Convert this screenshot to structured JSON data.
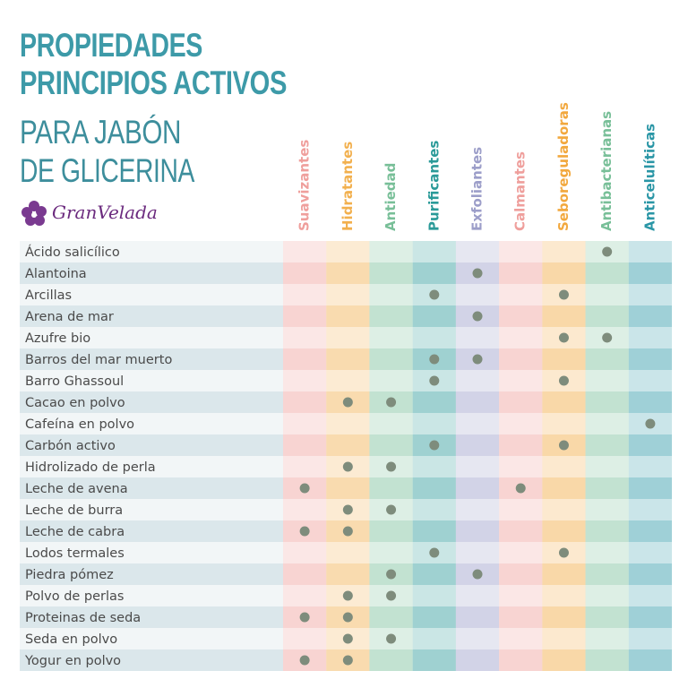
{
  "header": {
    "title": [
      "PROPIEDADES",
      "PRINCIPIOS ACTIVOS"
    ],
    "subtitle": [
      "PARA JABÓN",
      "DE GLICERINA"
    ],
    "brand": "GranVelada"
  },
  "table": {
    "columns": [
      {
        "name": "Suavizantes",
        "color": "#ef9f9c"
      },
      {
        "name": "Hidratantes",
        "color": "#f2b04e"
      },
      {
        "name": "Antiedad",
        "color": "#78bf98"
      },
      {
        "name": "Purificantes",
        "color": "#2a9a98"
      },
      {
        "name": "Exfoliantes",
        "color": "#9c9ec9"
      },
      {
        "name": "Calmantes",
        "color": "#ef9f9c"
      },
      {
        "name": "Seboreguladoras",
        "color": "#f2a83e"
      },
      {
        "name": "Antibacterianas",
        "color": "#78bf98"
      },
      {
        "name": "Anticelulíticas",
        "color": "#2a96a6"
      }
    ],
    "rows": [
      {
        "label": "Ácido salicílico",
        "marks": [
          false,
          false,
          false,
          false,
          false,
          false,
          false,
          true,
          false
        ]
      },
      {
        "label": "Alantoina",
        "marks": [
          false,
          false,
          false,
          false,
          true,
          false,
          false,
          false,
          false
        ]
      },
      {
        "label": "Arcillas",
        "marks": [
          false,
          false,
          false,
          true,
          false,
          false,
          true,
          false,
          false
        ]
      },
      {
        "label": "Arena de mar",
        "marks": [
          false,
          false,
          false,
          false,
          true,
          false,
          false,
          false,
          false
        ]
      },
      {
        "label": "Azufre bio",
        "marks": [
          false,
          false,
          false,
          false,
          false,
          false,
          true,
          true,
          false
        ]
      },
      {
        "label": "Barros del mar muerto",
        "marks": [
          false,
          false,
          false,
          true,
          true,
          false,
          false,
          false,
          false
        ]
      },
      {
        "label": "Barro Ghassoul",
        "marks": [
          false,
          false,
          false,
          true,
          false,
          false,
          true,
          false,
          false
        ]
      },
      {
        "label": "Cacao en polvo",
        "marks": [
          false,
          true,
          true,
          false,
          false,
          false,
          false,
          false,
          false
        ]
      },
      {
        "label": "Cafeína en polvo",
        "marks": [
          false,
          false,
          false,
          false,
          false,
          false,
          false,
          false,
          true
        ]
      },
      {
        "label": "Carbón activo",
        "marks": [
          false,
          false,
          false,
          true,
          false,
          false,
          true,
          false,
          false
        ]
      },
      {
        "label": "Hidrolizado de perla",
        "marks": [
          false,
          true,
          true,
          false,
          false,
          false,
          false,
          false,
          false
        ]
      },
      {
        "label": "Leche de avena",
        "marks": [
          true,
          false,
          false,
          false,
          false,
          true,
          false,
          false,
          false
        ]
      },
      {
        "label": "Leche de burra",
        "marks": [
          false,
          true,
          true,
          false,
          false,
          false,
          false,
          false,
          false
        ]
      },
      {
        "label": "Leche de cabra",
        "marks": [
          true,
          true,
          false,
          false,
          false,
          false,
          false,
          false,
          false
        ]
      },
      {
        "label": "Lodos termales",
        "marks": [
          false,
          false,
          false,
          true,
          false,
          false,
          true,
          false,
          false
        ]
      },
      {
        "label": "Piedra pómez",
        "marks": [
          false,
          false,
          true,
          false,
          true,
          false,
          false,
          false,
          false
        ]
      },
      {
        "label": "Polvo de perlas",
        "marks": [
          false,
          true,
          true,
          false,
          false,
          false,
          false,
          false,
          false
        ]
      },
      {
        "label": "Proteinas de seda",
        "marks": [
          true,
          true,
          false,
          false,
          false,
          false,
          false,
          false,
          false
        ]
      },
      {
        "label": "Seda en polvo",
        "marks": [
          false,
          true,
          true,
          false,
          false,
          false,
          false,
          false,
          false
        ]
      },
      {
        "label": "Yogur en polvo",
        "marks": [
          true,
          true,
          false,
          false,
          false,
          false,
          false,
          false,
          false
        ]
      }
    ]
  }
}
